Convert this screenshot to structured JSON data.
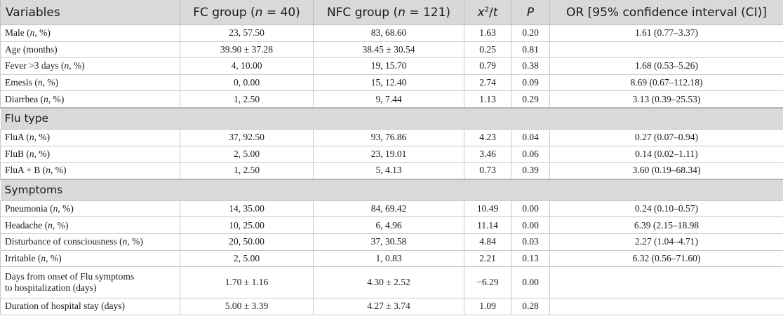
{
  "header": {
    "variables": "Variables",
    "fc_prefix": "FC group (",
    "fc_n": "n",
    "fc_suffix": " = 40)",
    "nfc_prefix": "NFC group (",
    "nfc_n": "n",
    "nfc_suffix": " = 121)",
    "stat_x": "x",
    "stat_sup": "2",
    "stat_slash": "/",
    "stat_t": "t",
    "p": "P",
    "or": "OR [95% confidence interval (CI)]"
  },
  "sections": [
    {
      "title": "",
      "rows": [
        {
          "pre": "Male (",
          "n": "n",
          "post": ", %)",
          "fc": "23, 57.50",
          "nfc": "83, 68.60",
          "stat": "1.63",
          "p": "0.20",
          "or": "1.61 (0.77–3.37)"
        },
        {
          "pre": "Age (months)",
          "n": "",
          "post": "",
          "fc": "39.90 ± 37.28",
          "nfc": "38.45 ± 30.54",
          "stat": "0.25",
          "p": "0.81",
          "or": ""
        },
        {
          "pre": "Fever >3 days (",
          "n": "n",
          "post": ", %)",
          "fc": "4, 10.00",
          "nfc": "19, 15.70",
          "stat": "0.79",
          "p": "0.38",
          "or": "1.68 (0.53–5.26)"
        },
        {
          "pre": "Emesis (",
          "n": "n",
          "post": ", %)",
          "fc": "0, 0.00",
          "nfc": "15, 12.40",
          "stat": "2.74",
          "p": "0.09",
          "or": "8.69 (0.67–112.18)"
        },
        {
          "pre": "Diarrhea (",
          "n": "n",
          "post": ", %)",
          "fc": "1, 2.50",
          "nfc": "9, 7.44",
          "stat": "1.13",
          "p": "0.29",
          "or": "3.13 (0.39–25.53)"
        }
      ]
    },
    {
      "title": "Flu type",
      "rows": [
        {
          "pre": "FluA (",
          "n": "n",
          "post": ", %)",
          "fc": "37, 92.50",
          "nfc": "93, 76.86",
          "stat": "4.23",
          "p": "0.04",
          "or": "0.27 (0.07–0.94)"
        },
        {
          "pre": "FluB (",
          "n": "n",
          "post": ", %)",
          "fc": "2, 5.00",
          "nfc": "23, 19.01",
          "stat": "3.46",
          "p": "0.06",
          "or": "0.14 (0.02–1.11)"
        },
        {
          "pre": "FluA + B (",
          "n": "n",
          "post": ", %)",
          "fc": "1, 2.50",
          "nfc": "5, 4.13",
          "stat": "0.73",
          "p": "0.39",
          "or": "3.60 (0.19–68.34)"
        }
      ]
    },
    {
      "title": "Symptoms",
      "rows": [
        {
          "pre": "Pneumonia (",
          "n": "n",
          "post": ", %)",
          "fc": "14, 35.00",
          "nfc": "84, 69.42",
          "stat": "10.49",
          "p": "0.00",
          "or": "0.24 (0.10–0.57)"
        },
        {
          "pre": "Headache (",
          "n": "n",
          "post": ", %)",
          "fc": "10, 25.00",
          "nfc": "6, 4.96",
          "stat": "11.14",
          "p": "0.00",
          "or": "6.39 (2.15–18.98"
        },
        {
          "pre": "Disturbance of consciousness (",
          "n": "n",
          "post": ", %)",
          "fc": "20, 50.00",
          "nfc": "37, 30.58",
          "stat": "4.84",
          "p": "0.03",
          "or": "2.27 (1.04–4.71)"
        },
        {
          "pre": "Irritable (",
          "n": "n",
          "post": ", %)",
          "fc": "2, 5.00",
          "nfc": "1, 0.83",
          "stat": "2.21",
          "p": "0.13",
          "or": "6.32 (0.56–71.60)"
        },
        {
          "pre": "Days from onset of Flu symptoms",
          "pre2": "to hospitalization (days)",
          "n": "",
          "post": "",
          "fc": "1.70 ± 1.16",
          "nfc": "4.30 ± 2.52",
          "stat": "−6.29",
          "p": "0.00",
          "or": ""
        },
        {
          "pre": "Duration of hospital stay (days)",
          "n": "",
          "post": "",
          "fc": "5.00 ± 3.39",
          "nfc": "4.27 ± 3.74",
          "stat": "1.09",
          "p": "0.28",
          "or": ""
        }
      ]
    }
  ]
}
